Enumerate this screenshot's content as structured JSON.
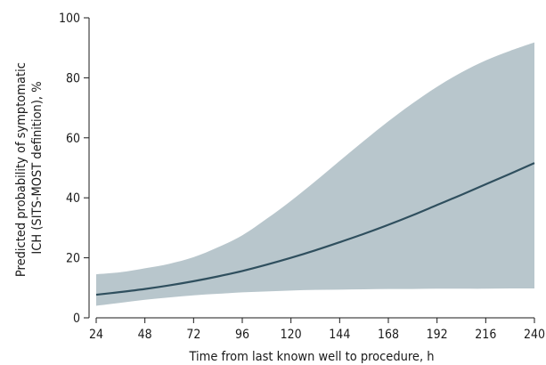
{
  "chart_data": {
    "type": "area",
    "title": "",
    "xlabel": "Time from last known well to procedure, h",
    "ylabel_lines": [
      "Predicted probability of symptomatic",
      "ICH (SITS-MOST definition), %"
    ],
    "xlim": [
      24,
      240
    ],
    "ylim": [
      0,
      100
    ],
    "xticks": [
      24,
      48,
      72,
      96,
      120,
      144,
      168,
      192,
      216,
      240
    ],
    "yticks": [
      0,
      20,
      40,
      60,
      80,
      100
    ],
    "grid": false,
    "legend": "none",
    "colors": {
      "line": "#2f4f5e",
      "band": "#b8c6cc",
      "axis": "#1a1a1a"
    },
    "x": [
      24,
      36,
      48,
      60,
      72,
      84,
      96,
      108,
      120,
      132,
      144,
      156,
      168,
      180,
      192,
      204,
      216,
      228,
      240
    ],
    "series": [
      {
        "role": "estimate",
        "values": [
          7.7,
          8.6,
          9.6,
          10.8,
          12.2,
          13.8,
          15.6,
          17.7,
          20.0,
          22.5,
          25.2,
          28.0,
          31.0,
          34.2,
          37.6,
          41.0,
          44.5,
          48.0,
          51.6
        ]
      },
      {
        "role": "upper",
        "values": [
          14.5,
          15.2,
          16.5,
          18.0,
          20.2,
          23.5,
          27.5,
          33.0,
          39.0,
          45.5,
          52.3,
          59.0,
          65.5,
          71.5,
          77.0,
          81.8,
          85.8,
          89.0,
          91.8
        ]
      },
      {
        "role": "lower",
        "values": [
          4.0,
          5.0,
          6.0,
          6.8,
          7.5,
          8.0,
          8.5,
          8.8,
          9.1,
          9.3,
          9.4,
          9.5,
          9.6,
          9.6,
          9.7,
          9.7,
          9.7,
          9.8,
          9.8
        ]
      }
    ]
  }
}
